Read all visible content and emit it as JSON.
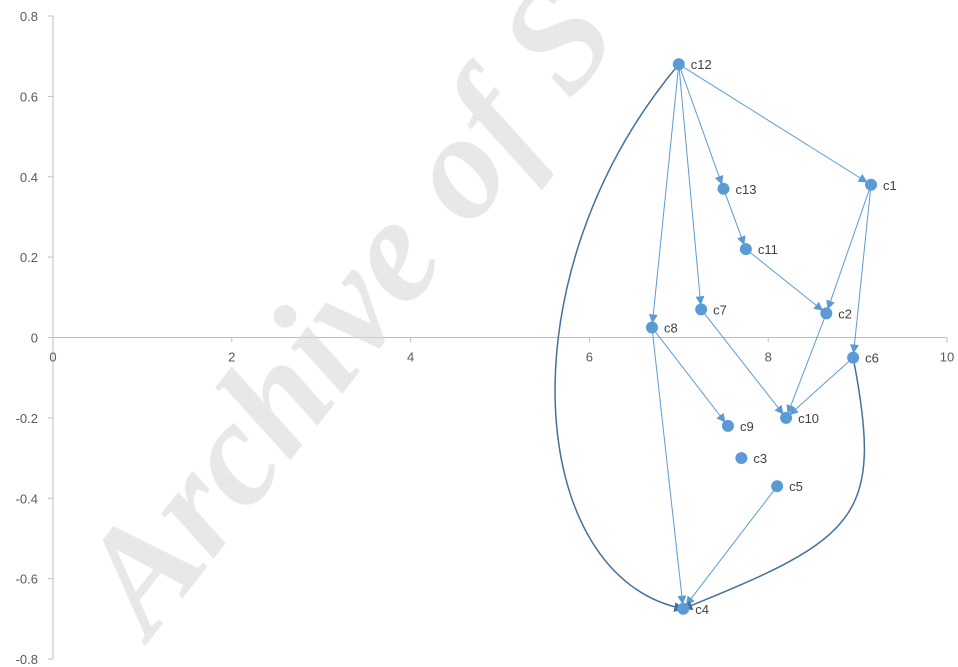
{
  "watermark": "Archive of S",
  "colors": {
    "axis": "#bfbfbf",
    "point": "#5b9bd5",
    "edge": "#5b9bd5",
    "curve": "#41719c",
    "tick_text": "#595959",
    "watermark": "#d9d9d9"
  },
  "chart_data": {
    "type": "scatter",
    "title": "",
    "xlabel": "",
    "ylabel": "",
    "xlim": [
      0,
      10
    ],
    "ylim": [
      -0.8,
      0.8
    ],
    "x_ticks": [
      0,
      2,
      4,
      6,
      8,
      10
    ],
    "y_ticks": [
      -0.8,
      -0.6,
      -0.4,
      -0.2,
      0,
      0.2,
      0.4,
      0.6,
      0.8
    ],
    "x_tick_labels": [
      "0",
      "2",
      "4",
      "6",
      "8",
      "10"
    ],
    "y_tick_labels": [
      "-0.8",
      "-0.6",
      "-0.4",
      "-0.2",
      "0",
      "0.2",
      "0.4",
      "0.6",
      "0.8"
    ],
    "grid": false,
    "points": [
      {
        "label": "c1",
        "x": 9.15,
        "y": 0.38
      },
      {
        "label": "c2",
        "x": 8.65,
        "y": 0.06
      },
      {
        "label": "c3",
        "x": 7.7,
        "y": -0.3
      },
      {
        "label": "c4",
        "x": 7.05,
        "y": -0.675
      },
      {
        "label": "c5",
        "x": 8.1,
        "y": -0.37
      },
      {
        "label": "c6",
        "x": 8.95,
        "y": -0.05
      },
      {
        "label": "c7",
        "x": 7.25,
        "y": 0.07
      },
      {
        "label": "c8",
        "x": 6.7,
        "y": 0.025
      },
      {
        "label": "c9",
        "x": 7.55,
        "y": -0.22
      },
      {
        "label": "c10",
        "x": 8.2,
        "y": -0.2
      },
      {
        "label": "c11",
        "x": 7.75,
        "y": 0.22
      },
      {
        "label": "c12",
        "x": 7.0,
        "y": 0.68
      },
      {
        "label": "c13",
        "x": 7.5,
        "y": 0.37
      }
    ],
    "edges": [
      {
        "from": "c12",
        "to": "c13"
      },
      {
        "from": "c12",
        "to": "c1"
      },
      {
        "from": "c12",
        "to": "c7"
      },
      {
        "from": "c12",
        "to": "c8"
      },
      {
        "from": "c13",
        "to": "c11"
      },
      {
        "from": "c11",
        "to": "c2"
      },
      {
        "from": "c1",
        "to": "c2"
      },
      {
        "from": "c1",
        "to": "c6"
      },
      {
        "from": "c2",
        "to": "c10"
      },
      {
        "from": "c6",
        "to": "c10"
      },
      {
        "from": "c7",
        "to": "c10"
      },
      {
        "from": "c8",
        "to": "c9"
      },
      {
        "from": "c8",
        "to": "c4"
      },
      {
        "from": "c5",
        "to": "c4"
      }
    ],
    "curved_edges": [
      {
        "from": "c12",
        "to": "c4",
        "via": [
          [
            5.0,
            0.15
          ],
          [
            5.3,
            -0.6
          ]
        ]
      },
      {
        "from": "c6",
        "to": "c4",
        "via": [
          [
            9.3,
            -0.45
          ],
          [
            9.0,
            -0.5
          ]
        ]
      }
    ]
  }
}
